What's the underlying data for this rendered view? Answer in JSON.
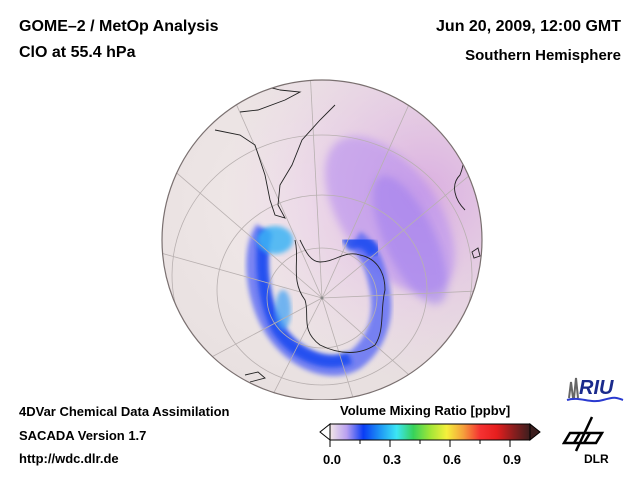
{
  "header": {
    "title": "GOME–2 / MetOp Analysis",
    "subtitle": "ClO at 55.4 hPa",
    "datetime": "Jun 20, 2009, 12:00 GMT",
    "region": "Southern Hemisphere"
  },
  "footer": {
    "line1": "4DVar Chemical Data Assimilation",
    "line2": "SACADA Version 1.7",
    "line3": "http://wdc.dlr.de"
  },
  "colorbar": {
    "label": "Volume Mixing Ratio [ppbv]",
    "ticks": [
      "0.0",
      "0.3",
      "0.6",
      "0.9"
    ],
    "range": [
      0.0,
      1.0
    ],
    "colors": [
      "#f3e6e6",
      "#b9a0f0",
      "#0a3cf5",
      "#1e96f5",
      "#3ce6f5",
      "#37d25a",
      "#a0e637",
      "#f5f03c",
      "#f5a03c",
      "#f53232",
      "#e61e1e",
      "#8c1e1e",
      "#3c1e1e"
    ]
  },
  "map": {
    "projection": "orthographic",
    "center": "South Pole",
    "background_color": "#efe6e6",
    "features": [
      "South America",
      "Antarctica",
      "Africa"
    ],
    "field": "ClO volume mixing ratio, enhanced ring around polar vortex edge (0.1-0.35 ppbv)"
  },
  "logos": {
    "riu": "RIU",
    "dlr": "DLR"
  }
}
